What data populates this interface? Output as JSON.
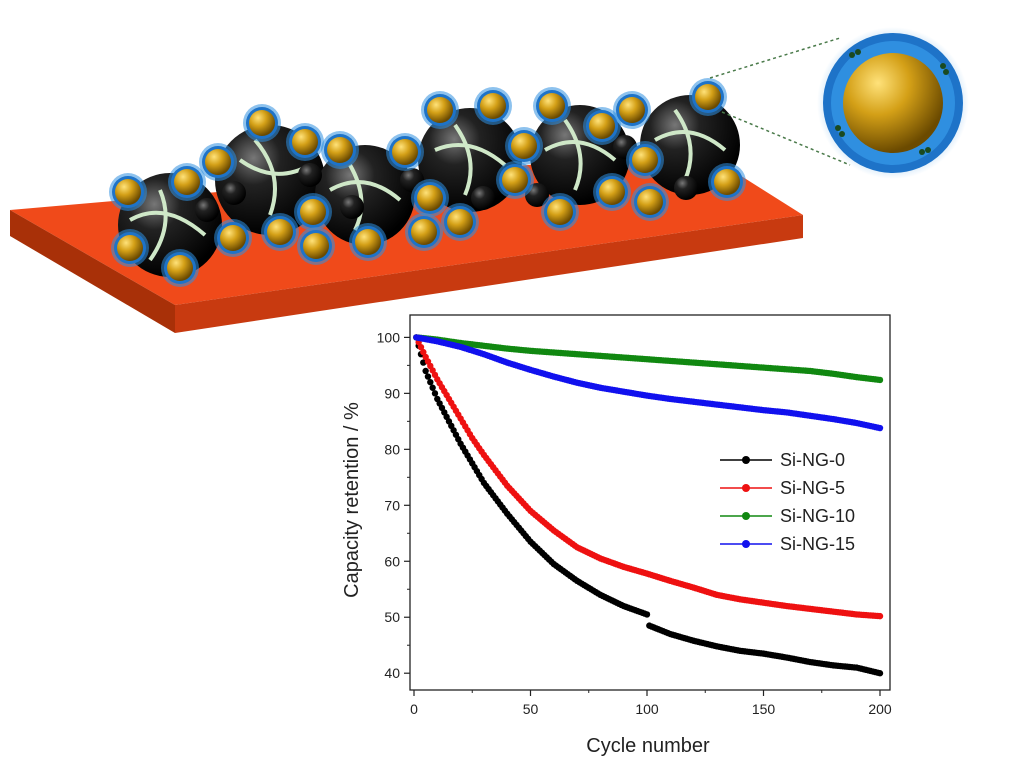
{
  "schematic": {
    "substrate_color": "#f04a1a",
    "particle_color": "#111111",
    "coating_color": "#d4a017",
    "glow_color": "#2f8fe0",
    "binder_color": "#cfe8c8"
  },
  "chart_data": {
    "type": "scatter",
    "xlabel": "Cycle number",
    "ylabel": "Capacity retention / %",
    "xlim": [
      0,
      200
    ],
    "ylim": [
      37,
      104
    ],
    "xticks": [
      0,
      50,
      100,
      150,
      200
    ],
    "yticks": [
      40,
      50,
      60,
      70,
      80,
      90,
      100
    ],
    "legend_position": "right-middle",
    "series": [
      {
        "name": "Si-NG-0",
        "color": "#000000",
        "x": [
          1,
          5,
          10,
          15,
          20,
          25,
          30,
          40,
          50,
          60,
          70,
          80,
          90,
          100,
          101,
          110,
          120,
          130,
          140,
          150,
          160,
          170,
          180,
          190,
          200
        ],
        "y": [
          100,
          94,
          89,
          85,
          81,
          77.5,
          74,
          68.5,
          63.5,
          59.5,
          56.5,
          54,
          52,
          50.5,
          48.5,
          47,
          45.8,
          44.8,
          44,
          43.5,
          42.8,
          42,
          41.4,
          41,
          40
        ]
      },
      {
        "name": "Si-NG-5",
        "color": "#ee1111",
        "x": [
          1,
          5,
          10,
          15,
          20,
          25,
          30,
          40,
          50,
          60,
          70,
          80,
          90,
          100,
          110,
          120,
          130,
          140,
          150,
          160,
          170,
          180,
          190,
          200
        ],
        "y": [
          100,
          96.5,
          92.5,
          89,
          85.5,
          82,
          79,
          73.5,
          69,
          65.5,
          62.5,
          60.5,
          59,
          57.8,
          56.5,
          55.3,
          54,
          53.2,
          52.6,
          52,
          51.5,
          51,
          50.5,
          50.2
        ]
      },
      {
        "name": "Si-NG-10",
        "color": "#118811",
        "x": [
          1,
          10,
          20,
          30,
          40,
          50,
          60,
          70,
          80,
          90,
          100,
          110,
          120,
          130,
          140,
          150,
          160,
          170,
          180,
          190,
          200
        ],
        "y": [
          100,
          99.6,
          99,
          98.5,
          98,
          97.6,
          97.3,
          97,
          96.7,
          96.4,
          96.1,
          95.8,
          95.5,
          95.2,
          94.9,
          94.6,
          94.3,
          94,
          93.5,
          92.9,
          92.4
        ]
      },
      {
        "name": "Si-NG-15",
        "color": "#1111ee",
        "x": [
          1,
          10,
          20,
          30,
          40,
          50,
          60,
          70,
          80,
          90,
          100,
          110,
          120,
          130,
          140,
          150,
          160,
          170,
          180,
          190,
          200
        ],
        "y": [
          100,
          99.3,
          98.3,
          97,
          95.5,
          94.2,
          93,
          91.9,
          91,
          90.3,
          89.6,
          89,
          88.5,
          88,
          87.5,
          87,
          86.6,
          86,
          85.4,
          84.7,
          83.8
        ]
      }
    ]
  }
}
